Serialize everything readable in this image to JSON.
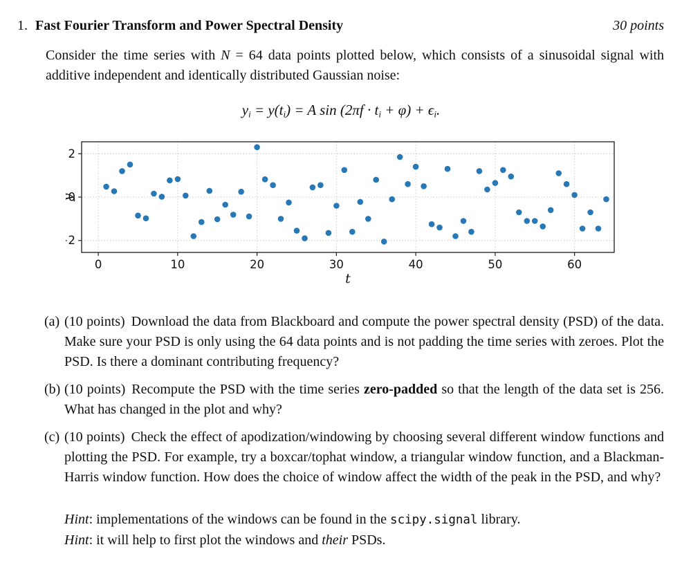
{
  "page": {
    "problem_number": "1.",
    "title": "Fast Fourier Transform and Power Spectral Density",
    "points_label": "30 points",
    "intro_before_n": "Consider the time series with ",
    "intro_n": "N",
    "intro_after_n": " = 64 data points plotted below, which consists of a sinusoidal signal with additive independent and identically distributed Gaussian noise:",
    "equation_segments": [
      {
        "t": "y"
      },
      {
        "t": "i",
        "sub": true
      },
      {
        "t": " = y(t"
      },
      {
        "t": "i",
        "sub": true
      },
      {
        "t": ") = A sin (2πf · t"
      },
      {
        "t": "i",
        "sub": true
      },
      {
        "t": " + φ) + ϵ"
      },
      {
        "t": "i",
        "sub": true
      },
      {
        "t": "."
      }
    ]
  },
  "parts": [
    {
      "label": "(a)",
      "points": "(10 points)",
      "text": "Download the data from Blackboard and compute the power spectral density (PSD) of the data. Make sure your PSD is only using the 64 data points and is not padding the time series with zeroes. Plot the PSD. Is there a dominant contributing frequency?"
    },
    {
      "label": "(b)",
      "points": "(10 points)",
      "before_bold": "Recompute the PSD with the time series ",
      "bold": "zero-padded",
      "after_bold": " so that the length of the data set is 256. What has changed in the plot and why?"
    },
    {
      "label": "(c)",
      "points": "(10 points)",
      "text": "Check the effect of apodization/windowing by choosing several different window functions and plotting the PSD. For example, try a boxcar/tophat window, a triangular window function, and a Blackman-Harris window function. How does the choice of window affect the width of the peak in the PSD, and why?"
    }
  ],
  "hints": [
    {
      "prefix": "Hint",
      "before_code": ": implementations of the windows can be found in the ",
      "code": "scipy.signal",
      "after_code": " library."
    },
    {
      "prefix": "Hint",
      "before_italic": ": it will help to first plot the windows and ",
      "italic": "their",
      "after_italic": " PSDs."
    }
  ],
  "chart_data": {
    "type": "scatter",
    "title": "",
    "xlabel": "t",
    "ylabel": "y",
    "xlim": [
      -2.1,
      65.0
    ],
    "ylim": [
      -2.55,
      2.55
    ],
    "xticks": [
      0,
      10,
      20,
      30,
      40,
      50,
      60
    ],
    "yticks": [
      -2,
      0,
      2
    ],
    "grid": true,
    "n_points": 64,
    "marker_color": "#2878b5",
    "x": [
      1,
      2,
      3,
      4,
      5,
      6,
      7,
      8,
      9,
      10,
      11,
      12,
      13,
      14,
      15,
      16,
      17,
      18,
      19,
      20,
      21,
      22,
      23,
      24,
      25,
      26,
      27,
      28,
      29,
      30,
      31,
      32,
      33,
      34,
      35,
      36,
      37,
      38,
      39,
      40,
      41,
      42,
      43,
      44,
      45,
      46,
      47,
      48,
      49,
      50,
      51,
      52,
      53,
      54,
      55,
      56,
      57,
      58,
      59,
      60,
      61,
      62,
      63,
      64
    ],
    "y": [
      0.48,
      0.27,
      1.2,
      1.5,
      -0.85,
      -0.98,
      0.16,
      0.02,
      0.77,
      0.83,
      0.07,
      -1.8,
      -1.15,
      0.29,
      -1.02,
      -0.35,
      -0.81,
      0.25,
      -0.89,
      2.3,
      0.82,
      0.55,
      -1.0,
      -0.25,
      -1.55,
      -1.9,
      0.45,
      0.55,
      -1.65,
      -0.4,
      1.25,
      -1.6,
      -0.22,
      -1.0,
      0.8,
      -2.05,
      -0.1,
      1.85,
      0.6,
      1.4,
      0.5,
      -1.25,
      -1.4,
      1.3,
      -1.8,
      -1.1,
      -1.6,
      1.2,
      0.35,
      0.65,
      1.25,
      0.95,
      -0.7,
      -1.1,
      -1.1,
      -1.35,
      -0.6,
      1.1,
      0.6,
      0.1,
      -1.45,
      -0.7,
      -1.45,
      -0.1
    ]
  }
}
